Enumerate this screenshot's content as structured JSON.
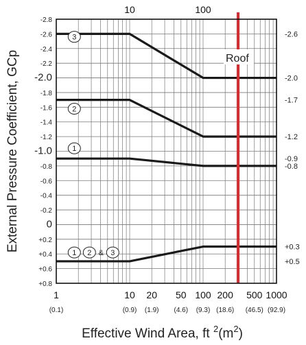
{
  "chart_data": {
    "type": "line",
    "x_scale": "log",
    "xlim": [
      1,
      1000
    ],
    "ylim": [
      -2.8,
      0.8
    ],
    "y_inverted": true,
    "ylabel": "External Pressure Coefficient, GCp",
    "xlabel_main": "Effective Wind Area, ft",
    "xlabel_sup": "2",
    "xlabel_unit": "(m",
    "xlabel_unit_sup": "2",
    "xlabel_close": ")",
    "y_ticks": [
      {
        "v": -2.8,
        "label": "-2.8"
      },
      {
        "v": -2.6,
        "label": "-2.6"
      },
      {
        "v": -2.4,
        "label": "-2.4"
      },
      {
        "v": -2.2,
        "label": "-2.2"
      },
      {
        "v": -2.0,
        "label": "-2.0"
      },
      {
        "v": -1.8,
        "label": "-1.8"
      },
      {
        "v": -1.6,
        "label": "-1.6"
      },
      {
        "v": -1.4,
        "label": "-1.4"
      },
      {
        "v": -1.2,
        "label": "-1.2"
      },
      {
        "v": -1.0,
        "label": "-1.0"
      },
      {
        "v": -0.8,
        "label": "-0.8"
      },
      {
        "v": -0.6,
        "label": "-0.6"
      },
      {
        "v": -0.4,
        "label": "-0.4"
      },
      {
        "v": -0.2,
        "label": "-0.2"
      },
      {
        "v": 0,
        "label": "0"
      },
      {
        "v": 0.2,
        "label": "+0.2"
      },
      {
        "v": 0.4,
        "label": "+0.4"
      },
      {
        "v": 0.6,
        "label": "+0.6"
      },
      {
        "v": 0.8,
        "label": "+0.8"
      }
    ],
    "x_ticks": [
      {
        "v": 1,
        "label": "1",
        "sub": "(0.1)"
      },
      {
        "v": 10,
        "label": "10",
        "sub": "(0.9)"
      },
      {
        "v": 20,
        "label": "20",
        "sub": "(1.9)"
      },
      {
        "v": 50,
        "label": "50",
        "sub": "(4.6)"
      },
      {
        "v": 100,
        "label": "100",
        "sub": "(9.3)"
      },
      {
        "v": 200,
        "label": "200",
        "sub": "(18.6)"
      },
      {
        "v": 500,
        "label": "500",
        "sub": "(46.5)"
      },
      {
        "v": 1000,
        "label": "1000",
        "sub": "(92.9)"
      }
    ],
    "top_ticks": [
      {
        "v": 10,
        "label": "10"
      },
      {
        "v": 100,
        "label": "100"
      }
    ],
    "grid": true,
    "series": [
      {
        "name": "3",
        "points": [
          [
            1,
            -2.6
          ],
          [
            10,
            -2.6
          ],
          [
            100,
            -2.0
          ],
          [
            1000,
            -2.0
          ]
        ],
        "label_y": -2.56,
        "label_x": 1.8
      },
      {
        "name": "2",
        "points": [
          [
            1,
            -1.7
          ],
          [
            10,
            -1.7
          ],
          [
            100,
            -1.2
          ],
          [
            1000,
            -1.2
          ]
        ],
        "label_y": -1.58,
        "label_x": 1.8
      },
      {
        "name": "1",
        "points": [
          [
            1,
            -0.9
          ],
          [
            10,
            -0.9
          ],
          [
            100,
            -0.8
          ],
          [
            1000,
            -0.8
          ]
        ],
        "label_y": -1.04,
        "label_x": 1.8
      },
      {
        "name": "1, 2 & 3",
        "points": [
          [
            1,
            0.5
          ],
          [
            10,
            0.5
          ],
          [
            100,
            0.3
          ],
          [
            1000,
            0.3
          ]
        ],
        "label_y": 0.38,
        "label_x": 1.8
      }
    ],
    "lower_label": {
      "c1": "1",
      "c2": "2",
      "amp": "&",
      "c3": "3"
    },
    "roof_line": {
      "x": 300,
      "color": "#e8232a",
      "label": "Roof"
    },
    "right_labels": [
      {
        "v": -2.6,
        "label": "-2.6"
      },
      {
        "v": -2.0,
        "label": "-2.0"
      },
      {
        "v": -1.7,
        "label": "-1.7"
      },
      {
        "v": -1.2,
        "label": "-1.2"
      },
      {
        "v": -0.9,
        "label": "-0.9"
      },
      {
        "v": -0.8,
        "label": "-0.8"
      },
      {
        "v": 0.3,
        "label": "+0.3"
      },
      {
        "v": 0.5,
        "label": "+0.5"
      }
    ],
    "line_color": "#1a1a1a",
    "grid_color": "#777777"
  }
}
